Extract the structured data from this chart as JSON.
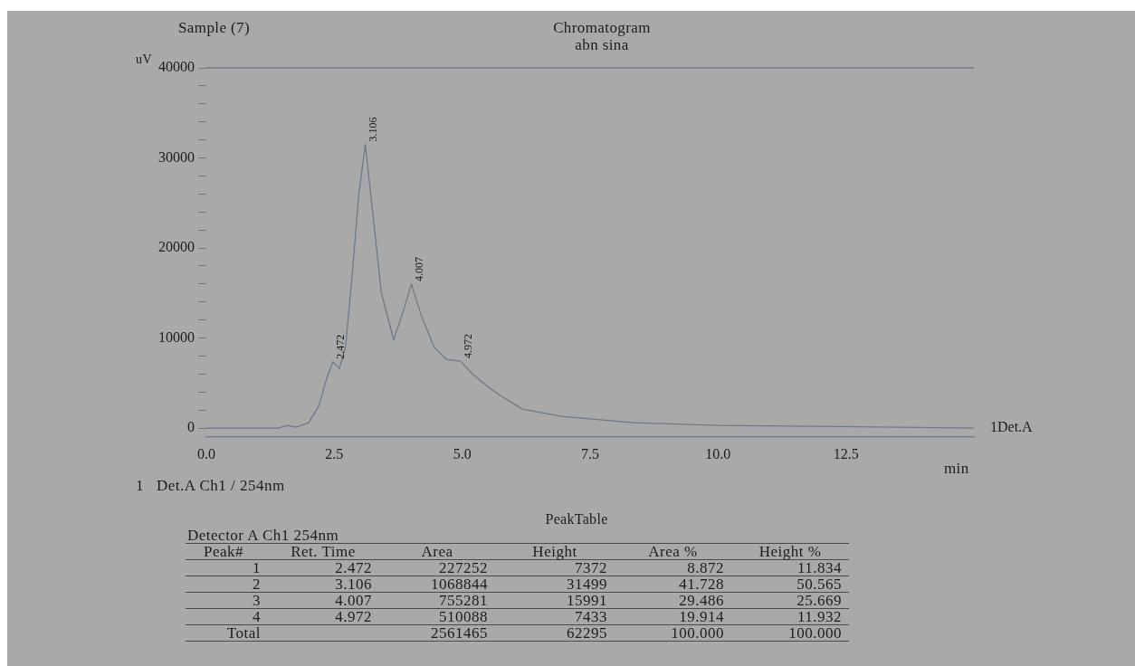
{
  "chart_data": [
    {
      "type": "line",
      "title": "Chromatogram",
      "subtitle": "abn sina",
      "ylabel": "uV",
      "xlabel": "min",
      "legend": "bottom left",
      "annotations": [
        "Sample (7)",
        {
          "text": "2.472",
          "x": 2.472,
          "y": 7372
        },
        {
          "text": "3.106",
          "x": 3.106,
          "y": 31499
        },
        {
          "text": "4.007",
          "x": 4.007,
          "y": 15991
        },
        {
          "text": "4.972",
          "x": 4.972,
          "y": 7433
        },
        {
          "text": "1Det.A",
          "x": 15,
          "y": 0
        }
      ],
      "series": [
        {
          "name": "Det.A Ch1 / 254nm",
          "color": "#6e7a86",
          "x": [
            0,
            1.4,
            1.58,
            1.75,
            2.0,
            2.2,
            2.35,
            2.472,
            2.6,
            2.72,
            2.85,
            2.98,
            3.106,
            3.25,
            3.42,
            3.66,
            3.85,
            4.007,
            4.2,
            4.45,
            4.7,
            4.972,
            5.2,
            5.52,
            5.75,
            6.18,
            6.94,
            8.35,
            10.0,
            11.9,
            13.5,
            15.0
          ],
          "values": [
            0,
            0,
            300,
            100,
            600,
            2500,
            5500,
            7372,
            6600,
            9000,
            17000,
            26000,
            31499,
            24000,
            15000,
            9800,
            13000,
            15991,
            12500,
            9000,
            7600,
            7433,
            6000,
            4500,
            3600,
            2100,
            1300,
            600,
            300,
            200,
            100,
            0
          ]
        }
      ],
      "xlim": [
        0,
        15
      ],
      "xticks": [
        {
          "value": 0,
          "label": "0.0"
        },
        2.5,
        {
          "value": 5,
          "label": "5.0"
        },
        7.5,
        {
          "value": 10,
          "label": "10.0"
        },
        12.5
      ],
      "ylim": [
        -1000,
        40000
      ],
      "yticks": [
        0,
        {
          "value": 2000,
          "label": null
        },
        {
          "value": 4000,
          "label": null
        },
        {
          "value": 6000,
          "label": null
        },
        {
          "value": 8000,
          "label": null
        },
        10000,
        {
          "value": 12000,
          "label": null
        },
        {
          "value": 14000,
          "label": null
        },
        {
          "value": 16000,
          "label": null
        },
        {
          "value": 18000,
          "label": null
        },
        20000,
        {
          "value": 22000,
          "label": null
        },
        {
          "value": 24000,
          "label": null
        },
        {
          "value": 26000,
          "label": null
        },
        {
          "value": 28000,
          "label": null
        },
        30000,
        {
          "value": 32000,
          "label": null
        },
        {
          "value": 34000,
          "label": null
        },
        {
          "value": 36000,
          "label": null
        },
        {
          "value": 38000,
          "label": null
        },
        40000
      ],
      "ref_lines": [
        {
          "axis": "y",
          "value": 40000,
          "color": "#6e7a86"
        }
      ]
    },
    {
      "type": "heatmap",
      "title": "PeakTable",
      "subtitle": "Detector A Ch1 254nm",
      "ylabel": "Peak#",
      "categories": [
        "Ret. Time",
        "Area",
        "Height",
        "Area %",
        "Height %"
      ],
      "y_categories": [
        "1",
        "2",
        "3",
        "4",
        "Total"
      ],
      "cells": [
        [
          2.472,
          227252,
          7372,
          8.872,
          11.834
        ],
        [
          3.106,
          1068844,
          31499,
          41.728,
          50.565
        ],
        [
          4.007,
          755281,
          15991,
          29.486,
          25.669
        ],
        [
          4.972,
          510088,
          7433,
          19.914,
          11.932
        ],
        [
          null,
          2561465,
          62295,
          100,
          100
        ]
      ],
      "cell_labels": [
        [
          "2.472",
          "227252",
          "7372",
          "8.872",
          "11.834"
        ],
        [
          "3.106",
          "1068844",
          "31499",
          "41.728",
          "50.565"
        ],
        [
          "4.007",
          "755281",
          "15991",
          "29.486",
          "25.669"
        ],
        [
          "4.972",
          "510088",
          "7433",
          "19.914",
          "11.932"
        ],
        [
          null,
          "2561465",
          "62295",
          "100.000",
          "100.000"
        ]
      ]
    }
  ]
}
